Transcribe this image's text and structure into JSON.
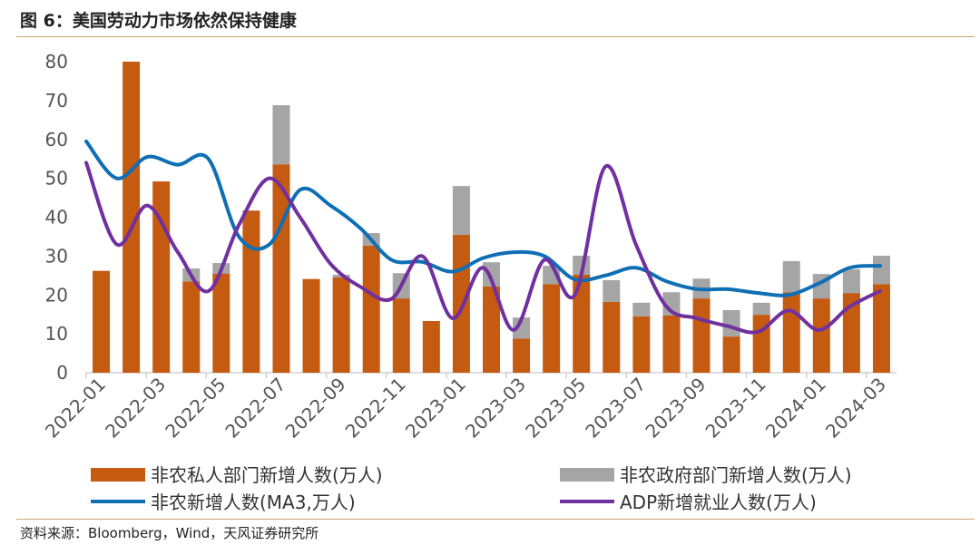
{
  "title": "图 6：美国劳动力市场依然保持健康",
  "source": "资料来源：Bloomberg，Wind，天风证券研究所",
  "chart_data": {
    "type": "bar",
    "stacked": true,
    "categories": [
      "2022-01",
      "2022-02",
      "2022-03",
      "2022-04",
      "2022-05",
      "2022-06",
      "2022-07",
      "2022-08",
      "2022-09",
      "2022-10",
      "2022-11",
      "2022-12",
      "2023-01",
      "2023-02",
      "2023-03",
      "2023-04",
      "2023-05",
      "2023-06",
      "2023-07",
      "2023-08",
      "2023-09",
      "2023-10",
      "2023-11",
      "2023-12",
      "2024-01",
      "2024-02",
      "2024-03"
    ],
    "x_tick_labels": [
      "2022-01",
      "2022-03",
      "2022-05",
      "2022-07",
      "2022-09",
      "2022-11",
      "2023-01",
      "2023-03",
      "2023-05",
      "2023-07",
      "2023-09",
      "2023-11",
      "2024-01",
      "2024-03"
    ],
    "ylim": [
      0,
      80
    ],
    "y_ticks": [
      0,
      10,
      20,
      30,
      40,
      50,
      60,
      70,
      80
    ],
    "grid": false,
    "legend_position": "bottom",
    "series": [
      {
        "name": "非农私人部门新增人数(万人)",
        "kind": "bar",
        "color": "#c55a11",
        "values": [
          26.2,
          80,
          49.2,
          23.5,
          25.5,
          41.7,
          53.6,
          24.1,
          24.5,
          32.7,
          19.1,
          13.3,
          35.5,
          22.2,
          8.8,
          22.8,
          25.2,
          18.2,
          14.5,
          14.7,
          19.1,
          9.3,
          14.9,
          20.7,
          19.1,
          20.5,
          22.8
        ]
      },
      {
        "name": "非农政府部门新增人数(万人)",
        "kind": "bar",
        "color": "#a5a5a5",
        "values": [
          0,
          0,
          0,
          3.3,
          2.7,
          0,
          15.2,
          0,
          0.7,
          3.2,
          6.5,
          0,
          12.5,
          6.2,
          5.4,
          4.7,
          4.9,
          5.6,
          3.5,
          6.0,
          5.1,
          6.8,
          3.1,
          8.0,
          6.3,
          6.1,
          7.3
        ]
      },
      {
        "name": "非农新增人数(MA3,万人)",
        "kind": "line",
        "color": "#0f6fb5",
        "values": [
          59.5,
          50,
          55.5,
          53.5,
          55,
          35,
          33,
          47,
          43,
          37,
          29,
          28.5,
          26,
          29.5,
          31,
          30,
          24,
          25,
          27,
          23.5,
          21.5,
          21.5,
          20.5,
          20,
          23,
          27,
          27.5
        ]
      },
      {
        "name": "ADP新增就业人数(万人)",
        "kind": "line",
        "color": "#7030a0",
        "values": [
          54,
          33,
          43,
          31,
          21,
          38,
          50,
          40,
          28,
          22,
          19,
          30,
          14,
          27,
          11,
          29,
          20,
          53,
          33,
          17,
          14,
          12,
          10.5,
          16,
          11,
          17,
          21
        ]
      }
    ]
  }
}
